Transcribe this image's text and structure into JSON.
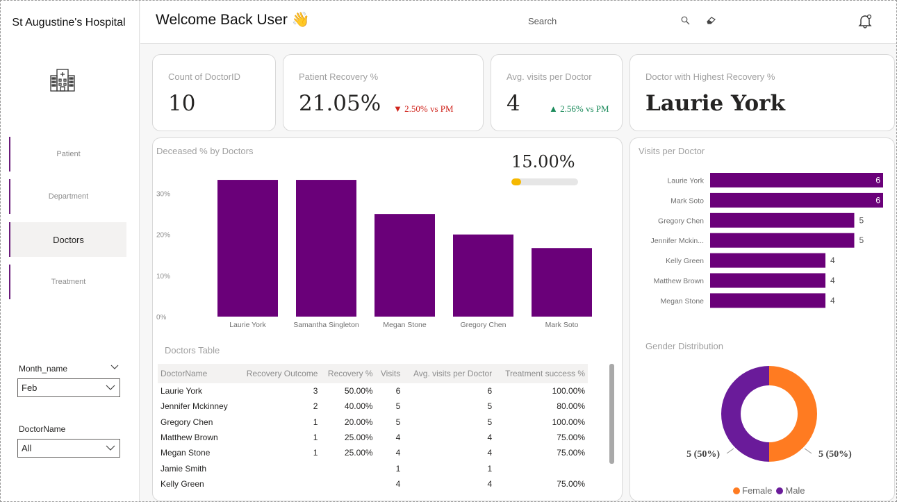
{
  "sidebar": {
    "hospital_name": "St Augustine's Hospital",
    "logo_icon": "hospital-building-icon",
    "nav": [
      {
        "label": "Patient",
        "active": false
      },
      {
        "label": "Department",
        "active": false
      },
      {
        "label": "Doctors",
        "active": true
      },
      {
        "label": "Treatment",
        "active": false
      }
    ],
    "filters": {
      "month_label": "Month_name",
      "month_value": "Feb",
      "doctor_label": "DoctorName",
      "doctor_value": "All"
    }
  },
  "header": {
    "welcome": "Welcome Back User 👋",
    "search_label": "Search"
  },
  "kpis": {
    "count_doctor": {
      "label": "Count of DoctorID",
      "value": "10"
    },
    "recovery": {
      "label": "Patient Recovery %",
      "value": "21.05%",
      "delta": "▼ 2.50% vs PM"
    },
    "visits": {
      "label": "Avg. visits per Doctor",
      "value": "4",
      "delta": "▲ 2.56% vs PM"
    },
    "top_doctor": {
      "label": "Doctor with Highest Recovery %",
      "value": "Laurie York"
    }
  },
  "deceased_gauge": {
    "value_text": "15.00%",
    "fraction": 0.15,
    "color": "#f5b800"
  },
  "table": {
    "title": "Doctors Table",
    "columns": [
      "DoctorName",
      "Recovery Outcome",
      "Recovery %",
      "Visits",
      "Avg. visits per Doctor",
      "Treatment success %"
    ],
    "rows": [
      [
        "Laurie York",
        "3",
        "50.00%",
        "6",
        "6",
        "100.00%"
      ],
      [
        "Jennifer Mckinney",
        "2",
        "40.00%",
        "5",
        "5",
        "80.00%"
      ],
      [
        "Gregory Chen",
        "1",
        "20.00%",
        "5",
        "5",
        "100.00%"
      ],
      [
        "Matthew Brown",
        "1",
        "25.00%",
        "4",
        "4",
        "75.00%"
      ],
      [
        "Megan Stone",
        "1",
        "25.00%",
        "4",
        "4",
        "75.00%"
      ],
      [
        "Jamie Smith",
        "",
        "",
        "1",
        "1",
        ""
      ],
      [
        "Kelly Green",
        "",
        "",
        "4",
        "4",
        "75.00%"
      ]
    ]
  },
  "chart_data": [
    {
      "type": "bar",
      "title": "Deceased % by Doctors",
      "categories": [
        "Laurie York",
        "Samantha Singleton",
        "Megan Stone",
        "Gregory Chen",
        "Mark Soto"
      ],
      "values": [
        33.3,
        33.3,
        25.0,
        20.0,
        16.7
      ],
      "yticks": [
        "0%",
        "10%",
        "20%",
        "30%"
      ],
      "ylim": [
        0,
        35
      ],
      "color": "#6a0079",
      "grid": false
    },
    {
      "type": "bar",
      "orientation": "horizontal",
      "title": "Visits per Doctor",
      "categories": [
        "Laurie York",
        "Mark Soto",
        "Gregory Chen",
        "Jennifer Mckin...",
        "Kelly Green",
        "Matthew Brown",
        "Megan Stone"
      ],
      "values": [
        6,
        6,
        5,
        5,
        4,
        4,
        4
      ],
      "xlim": [
        0,
        6
      ],
      "color": "#6a0079"
    },
    {
      "type": "pie",
      "title": "Gender Distribution",
      "labels": [
        "Female",
        "Male"
      ],
      "values": [
        5,
        5
      ],
      "data_labels": [
        "5 (50%)",
        "5 (50%)"
      ],
      "colors": [
        "#ff7b21",
        "#6a1b9a"
      ],
      "legend": "bottom"
    }
  ]
}
